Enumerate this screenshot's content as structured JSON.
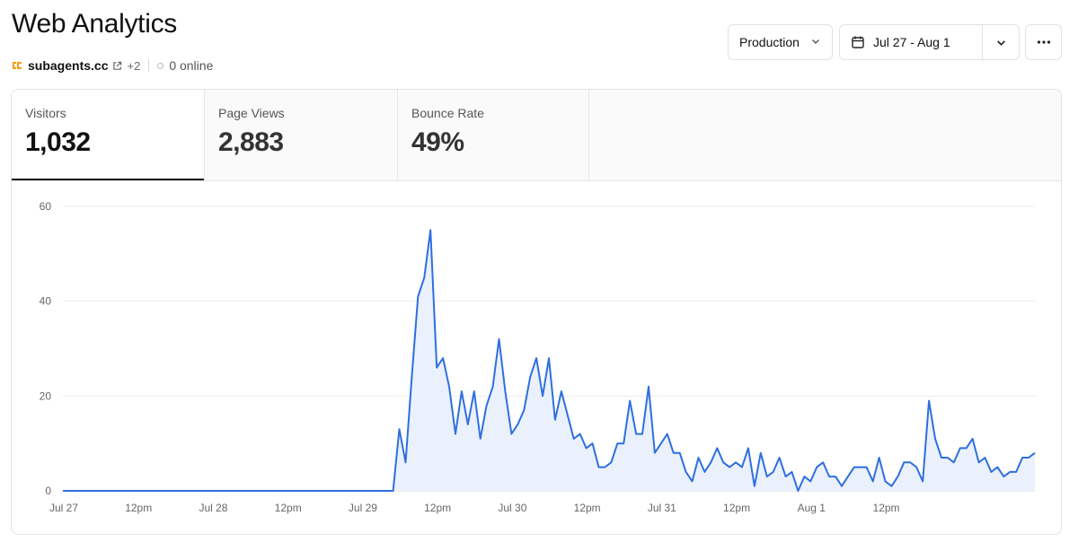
{
  "header": {
    "title": "Web Analytics",
    "site": "subagents.cc",
    "site_extra": "+2",
    "online": "0 online"
  },
  "controls": {
    "environment": "Production",
    "date_range": "Jul 27 - Aug 1"
  },
  "metrics": [
    {
      "label": "Visitors",
      "value": "1,032",
      "active": true
    },
    {
      "label": "Page Views",
      "value": "2,883",
      "active": false
    },
    {
      "label": "Bounce Rate",
      "value": "49%",
      "active": false
    }
  ],
  "colors": {
    "line": "#2f6fe0",
    "area": "#eaf1fc",
    "grid": "#ececec",
    "brand_icon": "#f59e0b"
  },
  "chart_data": {
    "type": "area",
    "title": "",
    "xlabel": "",
    "ylabel": "",
    "ylim": [
      0,
      60
    ],
    "yticks": [
      0,
      20,
      40,
      60
    ],
    "x_ticks": [
      "Jul 27",
      "12pm",
      "Jul 28",
      "12pm",
      "Jul 29",
      "12pm",
      "Jul 30",
      "12pm",
      "Jul 31",
      "12pm",
      "Aug 1",
      "12pm"
    ],
    "x_tick_positions": [
      0,
      12,
      24,
      36,
      48,
      60,
      72,
      84,
      96,
      108,
      120,
      132
    ],
    "grid": true,
    "series": [
      {
        "values": [
          0,
          0,
          0,
          0,
          0,
          0,
          0,
          0,
          0,
          0,
          0,
          0,
          0,
          0,
          0,
          0,
          0,
          0,
          0,
          0,
          0,
          0,
          0,
          0,
          0,
          0,
          0,
          0,
          0,
          0,
          0,
          0,
          0,
          0,
          0,
          0,
          0,
          0,
          0,
          0,
          0,
          0,
          0,
          0,
          0,
          0,
          0,
          0,
          0,
          0,
          0,
          0,
          0,
          0,
          13,
          6,
          24,
          41,
          45,
          55,
          26,
          28,
          22,
          12,
          21,
          14,
          21,
          11,
          18,
          22,
          32,
          21,
          12,
          14,
          17,
          24,
          28,
          20,
          28,
          15,
          21,
          16,
          11,
          12,
          9,
          10,
          5,
          5,
          6,
          10,
          10,
          19,
          12,
          12,
          22,
          8,
          10,
          12,
          8,
          8,
          4,
          2,
          7,
          4,
          6,
          9,
          6,
          5,
          6,
          5,
          9,
          1,
          8,
          3,
          4,
          7,
          3,
          4,
          0,
          3,
          2,
          5,
          6,
          3,
          3,
          1,
          3,
          5,
          5,
          5,
          2,
          7,
          2,
          1,
          3,
          6,
          6,
          5,
          2,
          19,
          11,
          7,
          7,
          6,
          9,
          9,
          11,
          6,
          7,
          4,
          5,
          3,
          4,
          4,
          7,
          7,
          8
        ]
      }
    ]
  }
}
